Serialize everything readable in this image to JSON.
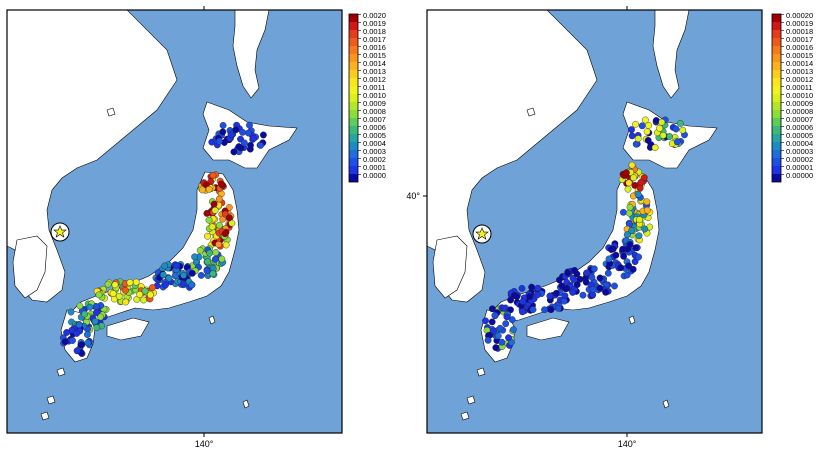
{
  "panels": [
    {
      "id": "left",
      "lon_tick_label": "140°",
      "lat_tick_label": "",
      "colorbar": {
        "labels": [
          "0.0020",
          "0.0019",
          "0.0018",
          "0.0017",
          "0.0016",
          "0.0015",
          "0.0014",
          "0.0013",
          "0.0012",
          "0.0011",
          "0.0010",
          "0.0009",
          "0.0008",
          "0.0007",
          "0.0006",
          "0.0005",
          "0.0004",
          "0.0003",
          "0.0002",
          "0.0001",
          "0.0000"
        ]
      }
    },
    {
      "id": "right",
      "lon_tick_label": "140°",
      "lat_tick_label": "40°",
      "colorbar": {
        "labels": [
          "0.00020",
          "0.00019",
          "0.00018",
          "0.00017",
          "0.00016",
          "0.00015",
          "0.00014",
          "0.00013",
          "0.00012",
          "0.00011",
          "0.00010",
          "0.00009",
          "0.00008",
          "0.00007",
          "0.00006",
          "0.00005",
          "0.00004",
          "0.00003",
          "0.00002",
          "0.00001",
          "0.00000"
        ]
      }
    }
  ],
  "colors": {
    "sea": "#6fa3d8",
    "land": "#ffffff",
    "colorbar_scale": [
      "#a00000",
      "#d01818",
      "#e63c1e",
      "#ee5a1e",
      "#f57a1e",
      "#f8961e",
      "#fbb21e",
      "#fccd1e",
      "#fbe51e",
      "#f2f21e",
      "#d8f01e",
      "#b4e628",
      "#8cdc3c",
      "#5ccd5a",
      "#3cb97a",
      "#28a5a0",
      "#1e8cc3",
      "#1e6edc",
      "#1e50e6",
      "#1e32e6",
      "#0a0aa0"
    ]
  },
  "epicenter_marker": "yellow-star-in-circle",
  "map_region": "Japan and surrounding seas"
}
